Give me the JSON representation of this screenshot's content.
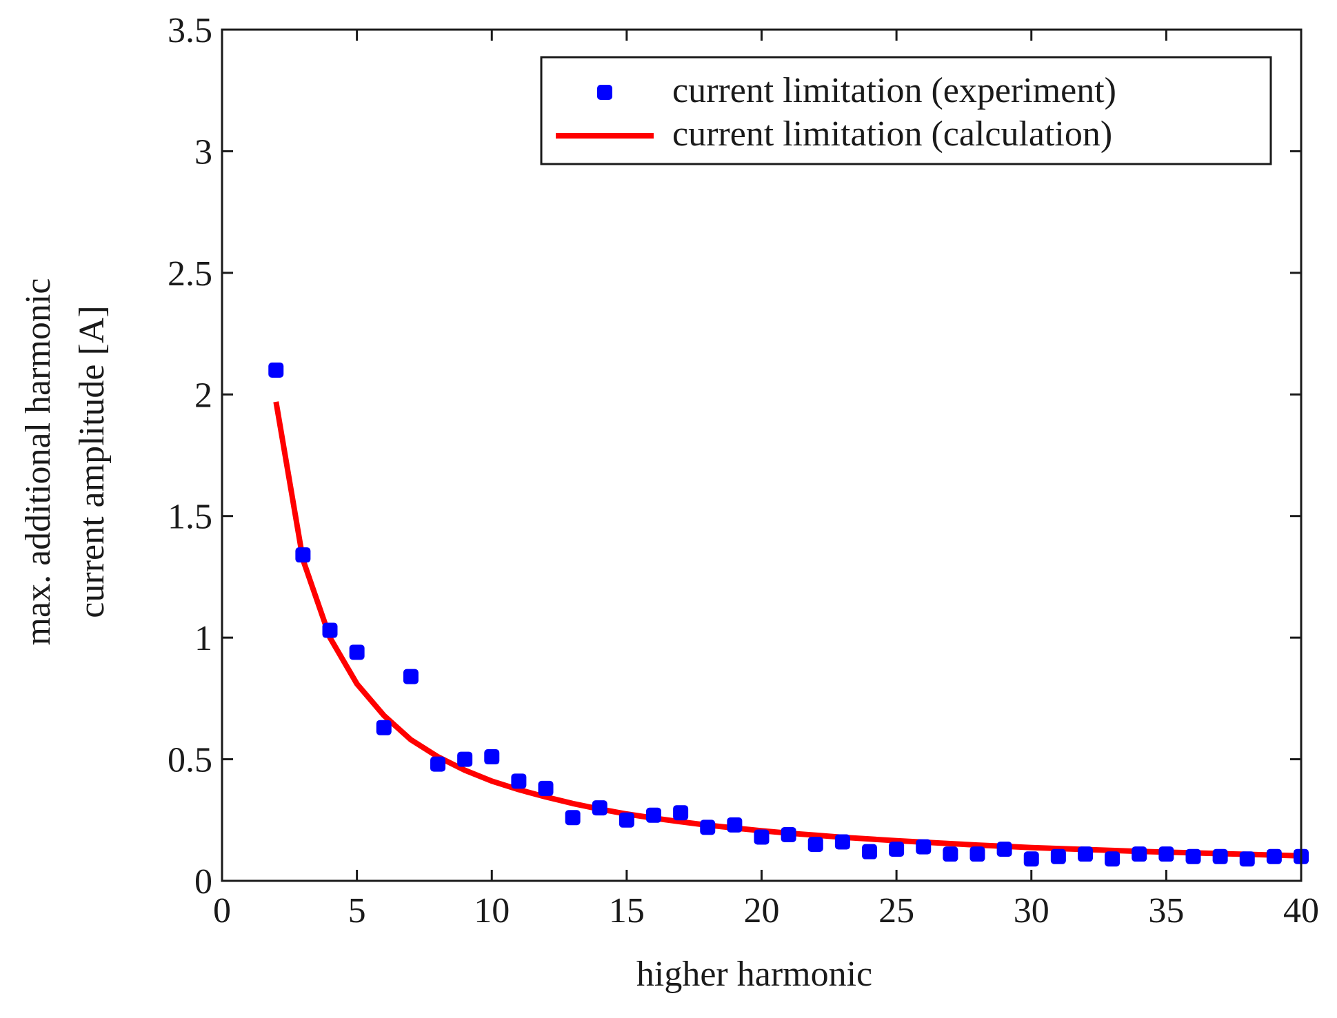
{
  "chart_data": {
    "type": "scatter",
    "title": "",
    "xlabel": "higher harmonic",
    "ylabel_lines": [
      "max. additional harmonic",
      "current amplitude  [A]"
    ],
    "xlim": [
      0,
      40
    ],
    "ylim": [
      0,
      3.5
    ],
    "xticks": [
      0,
      5,
      10,
      15,
      20,
      25,
      30,
      35,
      40
    ],
    "xtick_labels": [
      "0",
      "5",
      "10",
      "15",
      "20",
      "25",
      "30",
      "35",
      "40"
    ],
    "yticks": [
      0,
      0.5,
      1,
      1.5,
      2,
      2.5,
      3,
      3.5
    ],
    "ytick_labels": [
      "0",
      "0.5",
      "1",
      "1.5",
      "2",
      "2.5",
      "3",
      "3.5"
    ],
    "grid": false,
    "legend_position": "top-right",
    "series": [
      {
        "name": "current limitation (experiment)",
        "kind": "scatter",
        "color": "#0000ff",
        "x": [
          2,
          3,
          4,
          5,
          6,
          7,
          8,
          9,
          10,
          11,
          12,
          13,
          14,
          15,
          16,
          17,
          18,
          19,
          20,
          21,
          22,
          23,
          24,
          25,
          26,
          27,
          28,
          29,
          30,
          31,
          32,
          33,
          34,
          35,
          36,
          37,
          38,
          39,
          40
        ],
        "y": [
          2.1,
          1.34,
          1.03,
          0.94,
          0.63,
          0.84,
          0.48,
          0.5,
          0.51,
          0.41,
          0.38,
          0.26,
          0.3,
          0.25,
          0.27,
          0.28,
          0.22,
          0.23,
          0.18,
          0.19,
          0.15,
          0.16,
          0.12,
          0.13,
          0.14,
          0.11,
          0.11,
          0.13,
          0.09,
          0.1,
          0.11,
          0.09,
          0.11,
          0.11,
          0.1,
          0.1,
          0.09,
          0.1,
          0.1
        ]
      },
      {
        "name": "current limitation (calculation)",
        "kind": "line",
        "color": "#ff0000",
        "x": [
          2,
          3,
          4,
          5,
          6,
          7,
          8,
          9,
          10,
          11,
          12,
          13,
          14,
          15,
          16,
          17,
          18,
          19,
          20,
          21,
          22,
          23,
          24,
          25,
          26,
          27,
          28,
          29,
          30,
          31,
          32,
          33,
          34,
          35,
          36,
          37,
          38,
          39,
          40
        ],
        "y": [
          1.97,
          1.32,
          1.0,
          0.81,
          0.68,
          0.58,
          0.51,
          0.455,
          0.41,
          0.375,
          0.345,
          0.318,
          0.295,
          0.275,
          0.258,
          0.243,
          0.229,
          0.217,
          0.206,
          0.196,
          0.188,
          0.179,
          0.172,
          0.165,
          0.159,
          0.153,
          0.147,
          0.142,
          0.137,
          0.133,
          0.129,
          0.125,
          0.121,
          0.118,
          0.115,
          0.112,
          0.109,
          0.106,
          0.103
        ]
      }
    ]
  }
}
